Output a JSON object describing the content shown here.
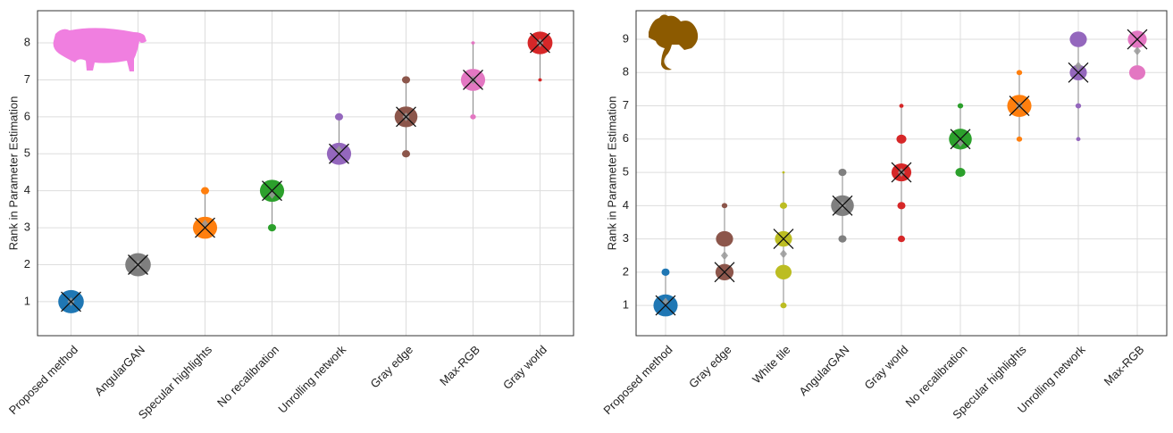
{
  "chart_data": [
    {
      "type": "rank-bubble",
      "ylabel": "Rank in Parameter Estimation",
      "ylim": [
        0.08,
        8.87
      ],
      "yticks": [
        1,
        2,
        3,
        4,
        5,
        6,
        7,
        8
      ],
      "grid": true,
      "categories": [
        {
          "name": "Proposed method",
          "color": "#1f77b4",
          "ranks": [
            1
          ],
          "sizes": [
            1
          ],
          "median": 1,
          "mean": 1
        },
        {
          "name": "AngularGAN",
          "color": "#7f7f7f",
          "ranks": [
            2
          ],
          "sizes": [
            1
          ],
          "median": 2,
          "mean": 2
        },
        {
          "name": "Specular highlights",
          "color": "#ff7f0e",
          "ranks": [
            3,
            4
          ],
          "sizes": [
            0.9,
            0.1
          ],
          "median": 3,
          "mean": 3.1
        },
        {
          "name": "No recalibration",
          "color": "#2ca02c",
          "ranks": [
            4,
            3
          ],
          "sizes": [
            0.9,
            0.1
          ],
          "median": 4,
          "mean": 3.9
        },
        {
          "name": "Unrolling network",
          "color": "#9467bd",
          "ranks": [
            5,
            6
          ],
          "sizes": [
            0.9,
            0.1
          ],
          "median": 5,
          "mean": 5.1
        },
        {
          "name": "Gray edge",
          "color": "#8c564b",
          "ranks": [
            6,
            7,
            5
          ],
          "sizes": [
            0.8,
            0.1,
            0.1
          ],
          "median": 6,
          "mean": 6
        },
        {
          "name": "Max-RGB",
          "color": "#e377c2",
          "ranks": [
            7,
            6,
            8
          ],
          "sizes": [
            0.9,
            0.05,
            0.02
          ],
          "median": 7,
          "mean": 7
        },
        {
          "name": "Gray world",
          "color": "#d62728",
          "ranks": [
            8,
            7
          ],
          "sizes": [
            0.95,
            0.02
          ],
          "median": 8,
          "mean": 8
        }
      ]
    },
    {
      "type": "rank-bubble",
      "ylabel": "Rank in Parameter Estimation",
      "ylim": [
        0.09,
        9.86
      ],
      "yticks": [
        1,
        2,
        3,
        4,
        5,
        6,
        7,
        8,
        9
      ],
      "grid": true,
      "categories": [
        {
          "name": "Proposed method",
          "color": "#1f77b4",
          "ranks": [
            1,
            2
          ],
          "sizes": [
            0.9,
            0.1
          ],
          "median": 1,
          "mean": 1.1
        },
        {
          "name": "Gray edge",
          "color": "#8c564b",
          "ranks": [
            2,
            3,
            4
          ],
          "sizes": [
            0.5,
            0.45,
            0.05
          ],
          "median": 2,
          "mean": 2.5
        },
        {
          "name": "White tile",
          "color": "#bcbd22",
          "ranks": [
            3,
            2,
            4,
            1,
            5
          ],
          "sizes": [
            0.45,
            0.4,
            0.08,
            0.06,
            0.01
          ],
          "median": 3,
          "mean": 2.55
        },
        {
          "name": "AngularGAN",
          "color": "#7f7f7f",
          "ranks": [
            4,
            5,
            3
          ],
          "sizes": [
            0.8,
            0.1,
            0.1
          ],
          "median": 4,
          "mean": 4
        },
        {
          "name": "Gray world",
          "color": "#d62728",
          "ranks": [
            5,
            6,
            4,
            3,
            7
          ],
          "sizes": [
            0.6,
            0.15,
            0.1,
            0.08,
            0.03
          ],
          "median": 5,
          "mean": 5
        },
        {
          "name": "No recalibration",
          "color": "#2ca02c",
          "ranks": [
            6,
            5,
            7
          ],
          "sizes": [
            0.8,
            0.15,
            0.05
          ],
          "median": 6,
          "mean": 5.9
        },
        {
          "name": "Specular highlights",
          "color": "#ff7f0e",
          "ranks": [
            7,
            8,
            6
          ],
          "sizes": [
            0.9,
            0.05,
            0.05
          ],
          "median": 7,
          "mean": 7
        },
        {
          "name": "Unrolling network",
          "color": "#9467bd",
          "ranks": [
            9,
            8,
            7,
            6
          ],
          "sizes": [
            0.45,
            0.45,
            0.05,
            0.03
          ],
          "median": 8,
          "mean": 8.2
        },
        {
          "name": "Max-RGB",
          "color": "#e377c2",
          "ranks": [
            9,
            8
          ],
          "sizes": [
            0.55,
            0.4
          ],
          "median": 9,
          "mean": 8.65
        }
      ]
    }
  ]
}
